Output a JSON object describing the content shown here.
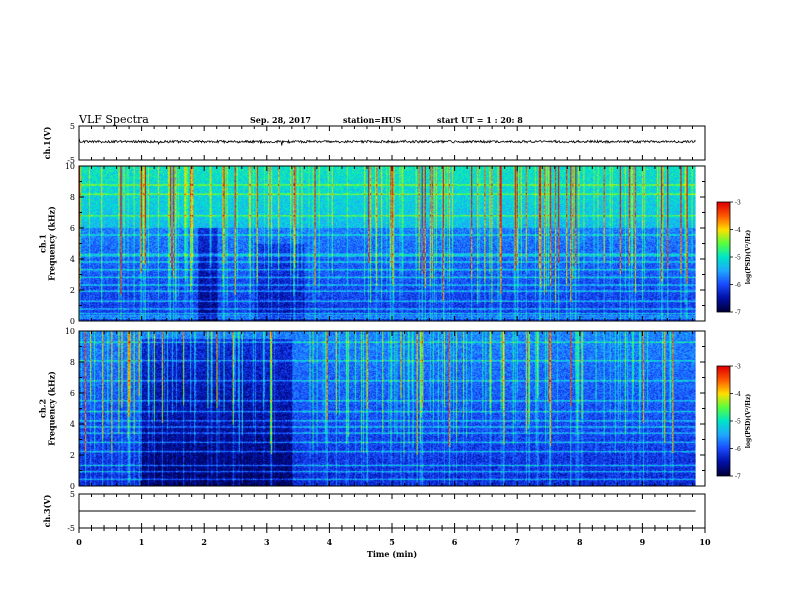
{
  "header": {
    "title": "VLF Spectra",
    "date": "Sep. 28, 2017",
    "station": "station=HUS",
    "start_ut": "start  UT  =   1 : 20: 8"
  },
  "colors": {
    "cmap": [
      "#00003a",
      "#0010a8",
      "#1a4cff",
      "#1fa9ff",
      "#00e6c8",
      "#58ff3e",
      "#ffe000",
      "#ff5a00",
      "#e00000"
    ],
    "trace": "#000000",
    "axis": "#000000"
  },
  "chart_data": [
    {
      "id": "ch1-waveform",
      "type": "line",
      "ylabel": "ch.1(V)",
      "ylim": [
        -5,
        5
      ],
      "yticks": [
        "5",
        "-5"
      ],
      "xlim": [
        0,
        10
      ],
      "series": [
        {
          "values": [
            0.4
          ]
        }
      ],
      "trace_noise_amplitude": 0.35
    },
    {
      "id": "ch1-spectrogram",
      "type": "heatmap",
      "ylabel": "ch.1\nFrequency (kHz)",
      "ylim": [
        0,
        10
      ],
      "yticks": [
        "0",
        "2",
        "4",
        "6",
        "8",
        "10"
      ],
      "xlim": [
        0,
        10
      ],
      "xrange_data": [
        0,
        9.85
      ],
      "colorbar": {
        "label": "log(PSD)(V²/Hz)",
        "ticks": [
          "-3",
          "-4",
          "-5",
          "-6",
          "-7"
        ],
        "range": [
          -7,
          -3
        ]
      },
      "lines_khz": [
        0.15,
        0.3,
        0.45,
        0.75,
        1.25,
        1.9,
        2.3,
        2.8,
        3.3,
        3.8,
        4.2,
        4.3,
        5.55,
        6.8,
        8.2,
        8.8
      ],
      "dark_interval_min": [
        1.9,
        2.2
      ],
      "dark_interval2_min": [
        2.8,
        3.6
      ]
    },
    {
      "id": "ch2-spectrogram",
      "type": "heatmap",
      "ylabel": "ch.2\nFrequency (kHz)",
      "ylim": [
        0,
        10
      ],
      "yticks": [
        "0",
        "2",
        "4",
        "6",
        "8",
        "10"
      ],
      "xlim": [
        0,
        10
      ],
      "xrange_data": [
        0,
        9.85
      ],
      "colorbar": {
        "label": "log(PSD)(V²/Hz)",
        "ticks": [
          "-3",
          "-4",
          "-5",
          "-6",
          "-7"
        ],
        "range": [
          -7,
          -3
        ]
      },
      "lines_khz": [
        0.4,
        0.9,
        1.3,
        2.2,
        2.8,
        3.4,
        3.8,
        4.2,
        4.8,
        5.5,
        6.8,
        8.1,
        9.3
      ],
      "dark_interval_min": [
        1.0,
        3.4
      ]
    },
    {
      "id": "ch3-waveform",
      "type": "line",
      "ylabel": "ch.3(V)",
      "ylim": [
        -5,
        5
      ],
      "yticks": [
        "5",
        "-5"
      ],
      "xlim": [
        0,
        10
      ],
      "xlabel": "Time (min)",
      "xticks": [
        "0",
        "1",
        "2",
        "3",
        "4",
        "5",
        "6",
        "7",
        "8",
        "9",
        "10"
      ],
      "series": [
        {
          "values": [
            0
          ]
        }
      ],
      "trace_noise_amplitude": 0
    }
  ]
}
